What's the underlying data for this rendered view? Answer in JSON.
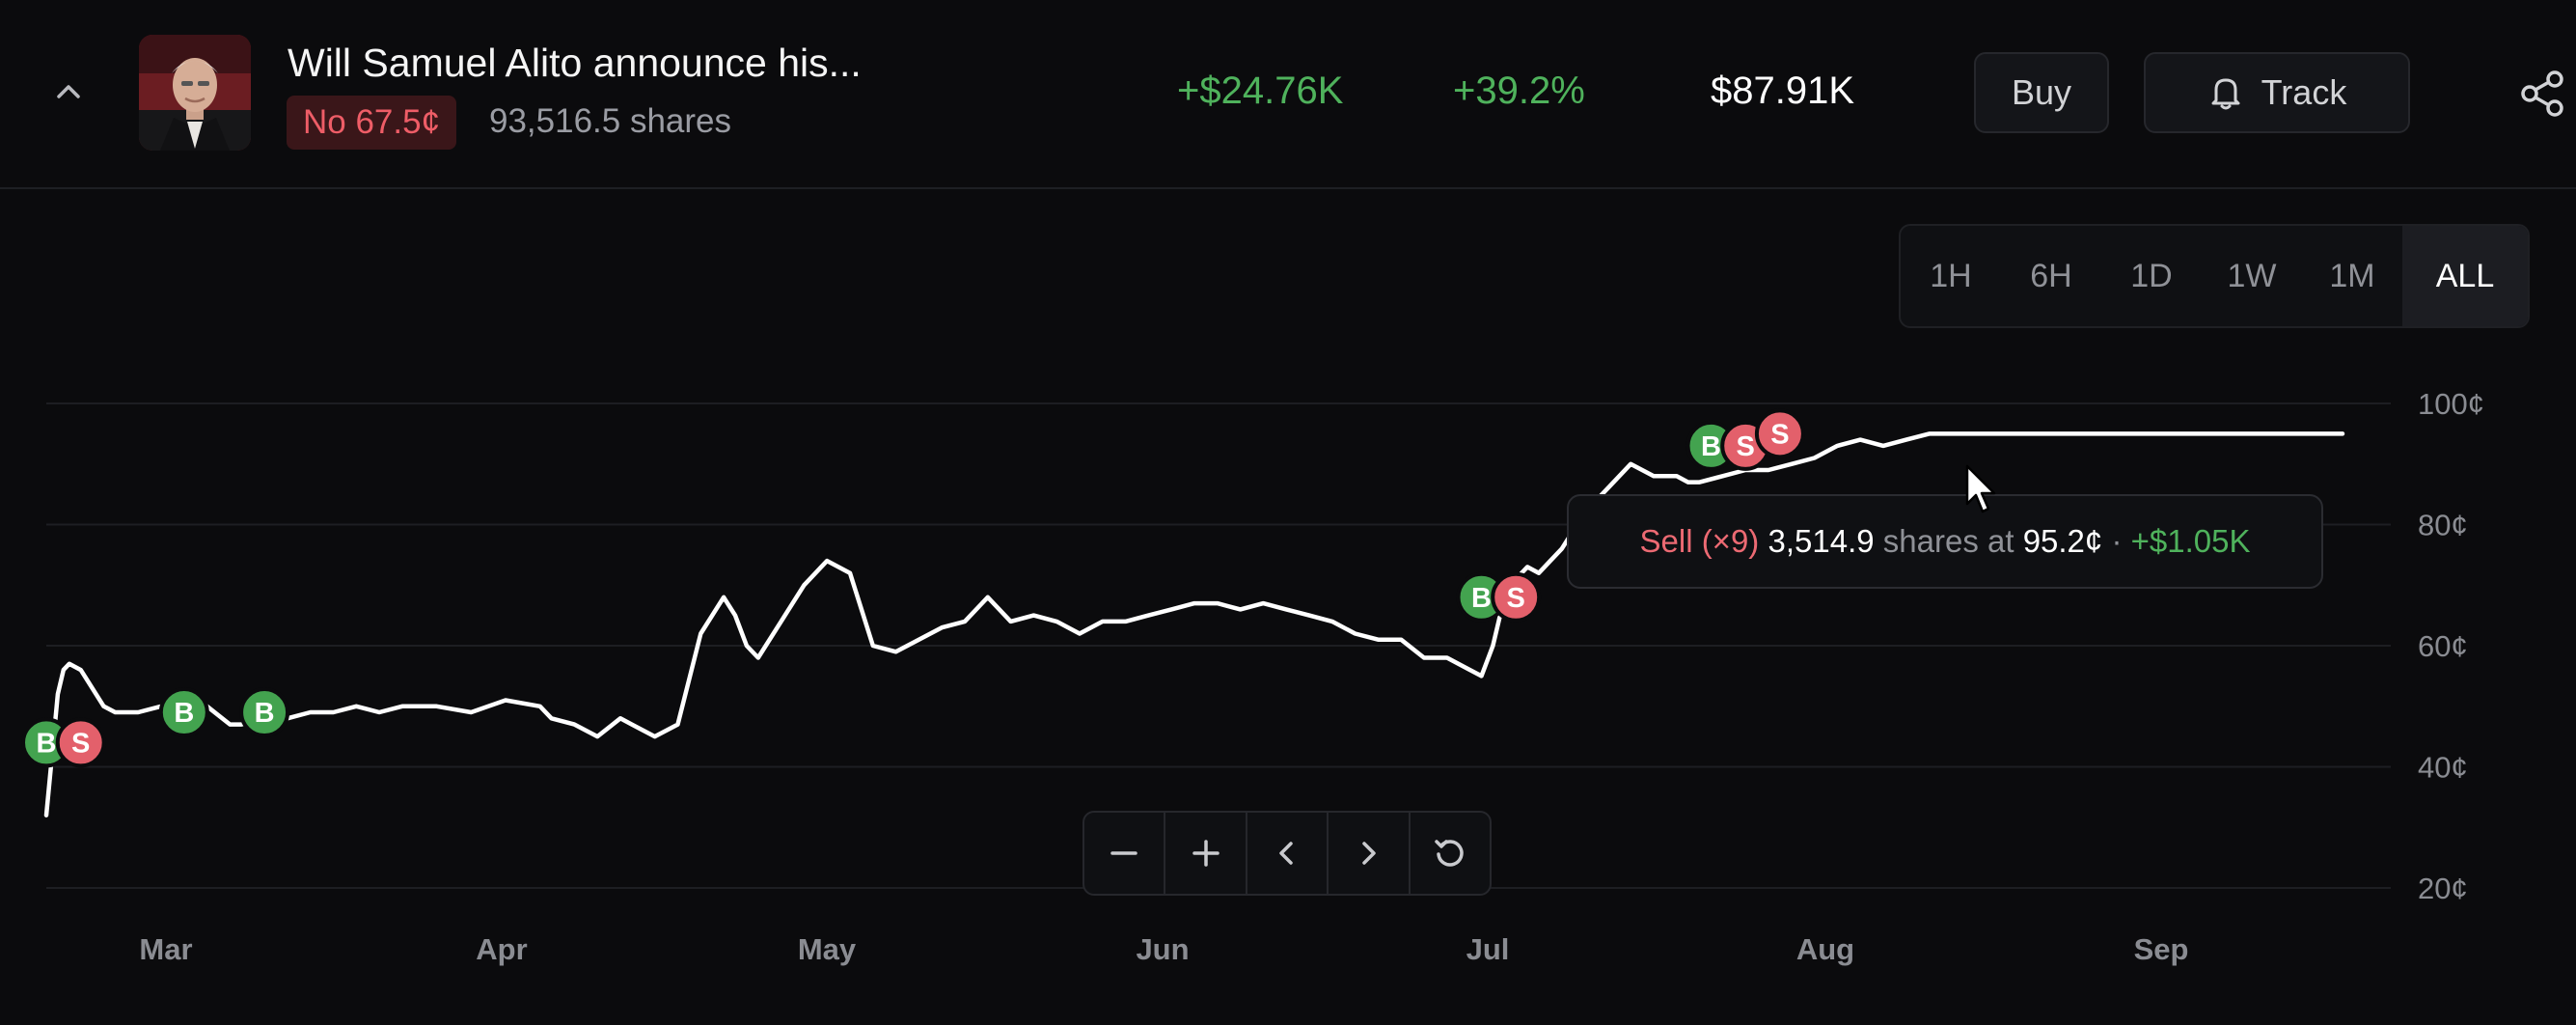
{
  "header": {
    "title": "Will Samuel Alito announce his...",
    "position_badge": "No 67.5¢",
    "shares": "93,516.5 shares",
    "pnl_amount": "+$24.76K",
    "pnl_percent": "+39.2%",
    "value": "$87.91K",
    "buy_label": "Buy",
    "track_label": "Track",
    "icons": [
      "chevron-up-icon",
      "bell-icon",
      "share-icon"
    ]
  },
  "range_selector": {
    "options": [
      "1H",
      "6H",
      "1D",
      "1W",
      "1M",
      "ALL"
    ],
    "selected": "ALL"
  },
  "chart_data": {
    "type": "line",
    "y_tick_labels": [
      "100¢",
      "80¢",
      "60¢",
      "40¢",
      "20¢"
    ],
    "y_ticks": [
      100,
      80,
      60,
      40,
      20
    ],
    "ylim": [
      20,
      100
    ],
    "x_tick_labels": [
      "Mar",
      "Apr",
      "May",
      "Jun",
      "Jul",
      "Aug",
      "Sep"
    ],
    "series": [
      {
        "x": [
          0,
          0.4,
          1,
          1.5,
          2,
          3,
          4,
          5,
          6,
          8,
          10,
          12,
          14,
          16,
          17,
          19,
          21,
          23,
          25,
          27,
          29,
          31,
          34,
          37,
          40,
          43,
          44,
          46,
          48,
          50,
          51,
          52,
          53,
          55,
          57,
          59,
          60,
          61,
          62,
          64,
          66,
          68,
          70,
          72,
          74,
          76,
          78,
          80,
          82,
          84,
          86,
          88,
          90,
          92,
          94,
          96,
          98,
          100,
          102,
          104,
          106,
          108,
          110,
          112,
          114,
          116,
          118,
          120,
          122,
          124,
          125,
          126,
          127,
          128,
          129,
          130,
          131,
          132,
          134,
          136,
          138,
          140,
          142,
          143,
          144,
          146,
          148,
          150,
          152,
          154,
          156,
          158,
          160,
          162,
          164,
          166,
          168,
          170,
          172,
          174,
          176,
          178,
          180,
          182,
          184,
          186,
          188,
          190,
          192,
          194,
          196,
          198,
          200
        ],
        "y": [
          32,
          40,
          52,
          56,
          57,
          56,
          53,
          50,
          49,
          49,
          50,
          52,
          50,
          47,
          47,
          48,
          48,
          49,
          49,
          50,
          49,
          50,
          50,
          49,
          51,
          50,
          48,
          47,
          45,
          48,
          47,
          46,
          45,
          47,
          62,
          68,
          65,
          60,
          58,
          64,
          70,
          74,
          72,
          60,
          59,
          61,
          63,
          64,
          68,
          64,
          65,
          64,
          62,
          64,
          64,
          65,
          66,
          67,
          67,
          66,
          67,
          66,
          65,
          64,
          62,
          61,
          61,
          58,
          58,
          56,
          55,
          60,
          68,
          71,
          73,
          72,
          74,
          76,
          82,
          86,
          90,
          88,
          88,
          87,
          87,
          88,
          89,
          89,
          90,
          91,
          93,
          94,
          93,
          94,
          95,
          95,
          95,
          95,
          95,
          95,
          95,
          95,
          95,
          95,
          95,
          95,
          95,
          95,
          95,
          95,
          95,
          95,
          95
        ]
      }
    ],
    "markers": [
      {
        "type": "B",
        "x": 0,
        "y": 44
      },
      {
        "type": "S",
        "x": 3,
        "y": 44
      },
      {
        "type": "B",
        "x": 12,
        "y": 49
      },
      {
        "type": "B",
        "x": 19,
        "y": 49
      },
      {
        "type": "B",
        "x": 125,
        "y": 68
      },
      {
        "type": "S",
        "x": 128,
        "y": 68
      },
      {
        "type": "B",
        "x": 145,
        "y": 93
      },
      {
        "type": "S",
        "x": 148,
        "y": 93
      },
      {
        "type": "S",
        "x": 151,
        "y": 95
      }
    ]
  },
  "tooltip": {
    "action": "Sell (×9)",
    "shares": "3,514.9",
    "shares_word": "shares at",
    "price": "95.2¢",
    "separator": "·",
    "gain": "+$1.05K"
  },
  "zoom_controls": [
    "minus-icon",
    "plus-icon",
    "chevron-left-icon",
    "chevron-right-icon",
    "reset-icon"
  ],
  "colors": {
    "buy": "#43a34f",
    "sell": "#e3606b",
    "gain": "#4fb25c",
    "loss": "#ee5d67",
    "line": "#ffffff"
  }
}
